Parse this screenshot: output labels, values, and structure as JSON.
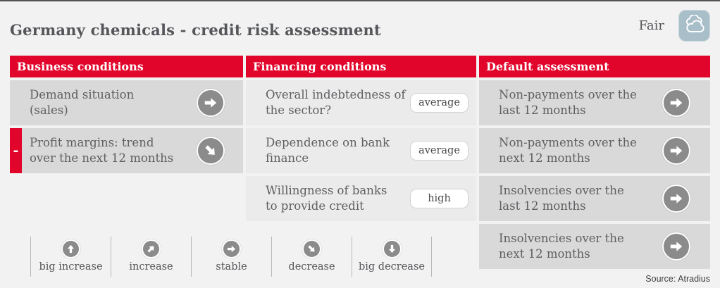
{
  "page": {
    "title": "Germany chemicals - credit risk assessment",
    "source": "Source: Atradius"
  },
  "rating": {
    "label": "Fair",
    "icon": "cloud-icon",
    "badge_color": "#a8bfca"
  },
  "colors": {
    "accent_red": "#e2052b",
    "row_grey": "#d9d9d9",
    "row_grey_light": "#ebebeb",
    "icon_grey": "#8b8b8b",
    "text_grey": "#55565a",
    "page_bg": "#f2f2f2"
  },
  "indicator_angles": {
    "big-increase": -90,
    "increase": -45,
    "stable": 0,
    "decrease": 45,
    "big-decrease": 90
  },
  "columns": [
    {
      "slug": "business-conditions",
      "header": "Business conditions",
      "rows": [
        {
          "label": "Demand situation\n(sales)",
          "indicator": "stable",
          "marker": ""
        },
        {
          "label": "Profit margins: trend\nover the next 12 months",
          "indicator": "decrease",
          "marker": "-"
        }
      ]
    },
    {
      "slug": "financing-conditions",
      "header": "Financing conditions",
      "rows": [
        {
          "label": "Overall indebtedness of\nthe sector?",
          "value": "average"
        },
        {
          "label": "Dependence on bank\nfinance",
          "value": "average"
        },
        {
          "label": "Willingness of banks\nto provide credit",
          "value": "high"
        }
      ]
    },
    {
      "slug": "default-assessment",
      "header": "Default assessment",
      "rows": [
        {
          "label": "Non-payments over the\nlast 12 months",
          "indicator": "stable"
        },
        {
          "label": "Non-payments over the\nnext 12 months",
          "indicator": "stable"
        },
        {
          "label": "Insolvencies over the\nlast 12 months",
          "indicator": "stable"
        },
        {
          "label": "Insolvencies over the\nnext 12 months",
          "indicator": "stable"
        }
      ]
    }
  ],
  "legend": [
    {
      "key": "big-increase",
      "label": "big increase"
    },
    {
      "key": "increase",
      "label": "increase"
    },
    {
      "key": "stable",
      "label": "stable"
    },
    {
      "key": "decrease",
      "label": "decrease"
    },
    {
      "key": "big-decrease",
      "label": "big decrease"
    }
  ],
  "chart_data": {
    "type": "table",
    "title": "Germany chemicals - credit risk assessment",
    "overall_rating": "Fair",
    "legend_scale": [
      "big increase",
      "increase",
      "stable",
      "decrease",
      "big decrease"
    ],
    "sections": [
      {
        "name": "Business conditions",
        "items": [
          {
            "item": "Demand situation (sales)",
            "trend": "stable",
            "negative_flag": false
          },
          {
            "item": "Profit margins: trend over the next 12 months",
            "trend": "decrease",
            "negative_flag": true
          }
        ]
      },
      {
        "name": "Financing conditions",
        "items": [
          {
            "item": "Overall indebtedness of the sector?",
            "rating": "average"
          },
          {
            "item": "Dependence on bank finance",
            "rating": "average"
          },
          {
            "item": "Willingness of banks to provide credit",
            "rating": "high"
          }
        ]
      },
      {
        "name": "Default assessment",
        "items": [
          {
            "item": "Non-payments over the last 12 months",
            "trend": "stable"
          },
          {
            "item": "Non-payments over the next 12 months",
            "trend": "stable"
          },
          {
            "item": "Insolvencies over the last 12 months",
            "trend": "stable"
          },
          {
            "item": "Insolvencies over the next 12 months",
            "trend": "stable"
          }
        ]
      },
      {
        "name": "Source",
        "items": [
          {
            "item": "Source: Atradius"
          }
        ]
      }
    ]
  }
}
